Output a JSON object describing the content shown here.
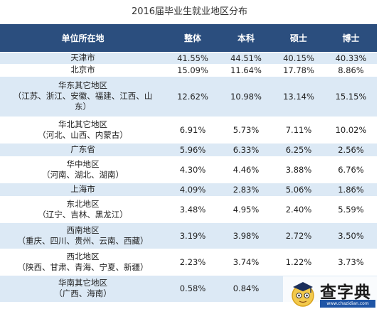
{
  "title": "2016届毕业生就业地区分布",
  "table": {
    "headers": [
      "单位所在地",
      "整体",
      "本科",
      "硕士",
      "博士"
    ],
    "rows": [
      {
        "region": [
          "天津市"
        ],
        "values": [
          "41.55%",
          "44.51%",
          "40.15%",
          "40.33%"
        ]
      },
      {
        "region": [
          "北京市"
        ],
        "values": [
          "15.09%",
          "11.64%",
          "17.78%",
          "8.86%"
        ]
      },
      {
        "region": [
          "华东其它地区",
          "（江苏、浙江、安徽、福建、江西、山",
          "东）"
        ],
        "values": [
          "12.62%",
          "10.98%",
          "13.14%",
          "15.15%"
        ]
      },
      {
        "region": [
          "华北其它地区",
          "（河北、山西、内蒙古）"
        ],
        "values": [
          "6.91%",
          "5.73%",
          "7.11%",
          "10.02%"
        ]
      },
      {
        "region": [
          "广东省"
        ],
        "values": [
          "5.96%",
          "6.33%",
          "6.25%",
          "2.56%"
        ]
      },
      {
        "region": [
          "华中地区",
          "（河南、湖北、湖南）"
        ],
        "values": [
          "4.30%",
          "4.46%",
          "3.88%",
          "6.76%"
        ]
      },
      {
        "region": [
          "上海市"
        ],
        "values": [
          "4.09%",
          "2.83%",
          "5.06%",
          "1.86%"
        ]
      },
      {
        "region": [
          "东北地区",
          "（辽宁、吉林、黑龙江）"
        ],
        "values": [
          "3.48%",
          "4.95%",
          "2.40%",
          "5.59%"
        ]
      },
      {
        "region": [
          "西南地区",
          "（重庆、四川、贵州、云南、西藏）"
        ],
        "values": [
          "3.19%",
          "3.98%",
          "2.72%",
          "3.50%"
        ]
      },
      {
        "region": [
          "西北地区",
          "（陕西、甘肃、青海、宁夏、新疆）"
        ],
        "values": [
          "2.23%",
          "3.74%",
          "1.22%",
          "3.73%"
        ]
      },
      {
        "region": [
          "华南其它地区",
          "（广西、海南）"
        ],
        "values": [
          "0.58%",
          "0.84%",
          "",
          ""
        ]
      }
    ]
  },
  "watermark": {
    "title": "查字典",
    "url": "www.chazidian.com",
    "icon": "scholar-mascot-icon"
  },
  "colors": {
    "header_bg": "#2b4e7e",
    "stripe_bg": "#dce9f5",
    "logo_blue": "#1f55a6"
  }
}
